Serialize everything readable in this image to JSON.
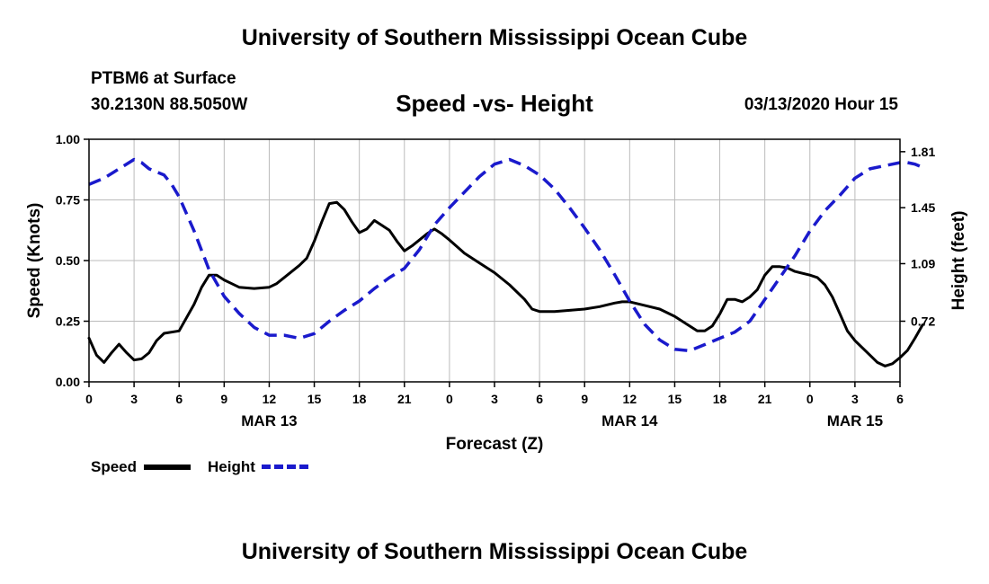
{
  "header": {
    "top_title": "University of Southern Mississippi Ocean Cube",
    "station": "PTBM6 at Surface",
    "coords": "30.2130N 88.5050W",
    "chart_title": "Speed -vs- Height",
    "datetime": "03/13/2020 Hour 15"
  },
  "footer": {
    "bottom_title": "University of Southern Mississippi Ocean Cube"
  },
  "legend": {
    "speed_label": "Speed",
    "height_label": "Height"
  },
  "colors": {
    "speed": "#000000",
    "height": "#1a1acc",
    "grid": "#bbbbbb"
  },
  "chart_data": {
    "type": "line",
    "title": "Speed -vs- Height",
    "xlabel": "Forecast (Z)",
    "ylabel": "Speed (Knots)",
    "y2label": "Height (feet)",
    "x_range_hours": [
      0,
      54
    ],
    "ylim": [
      0,
      1.0
    ],
    "y2lim": [
      0.33,
      1.89
    ],
    "y_ticks": [
      "0.00",
      "0.25",
      "0.50",
      "0.75",
      "1.00"
    ],
    "y2_ticks": [
      "0.72",
      "1.09",
      "1.45",
      "1.81"
    ],
    "x_tick_labels": [
      "0",
      "3",
      "6",
      "9",
      "12",
      "15",
      "18",
      "21",
      "0",
      "3",
      "6",
      "9",
      "12",
      "15",
      "18",
      "21",
      "0",
      "3",
      "6"
    ],
    "date_labels": [
      {
        "text": "MAR 13",
        "hour": 12
      },
      {
        "text": "MAR 14",
        "hour": 36
      },
      {
        "text": "MAR 15",
        "hour": 51
      }
    ],
    "grid": true,
    "series": [
      {
        "name": "Speed",
        "axis": "left",
        "style": "solid",
        "points": [
          [
            0,
            0.18
          ],
          [
            0.5,
            0.11
          ],
          [
            1,
            0.08
          ],
          [
            1.5,
            0.12
          ],
          [
            2,
            0.155
          ],
          [
            2.5,
            0.12
          ],
          [
            3,
            0.09
          ],
          [
            3.5,
            0.095
          ],
          [
            4,
            0.12
          ],
          [
            4.5,
            0.17
          ],
          [
            5,
            0.2
          ],
          [
            6,
            0.21
          ],
          [
            7,
            0.32
          ],
          [
            7.5,
            0.39
          ],
          [
            8,
            0.44
          ],
          [
            8.5,
            0.44
          ],
          [
            9,
            0.42
          ],
          [
            10,
            0.39
          ],
          [
            11,
            0.385
          ],
          [
            12,
            0.39
          ],
          [
            12.5,
            0.405
          ],
          [
            13,
            0.43
          ],
          [
            14,
            0.48
          ],
          [
            14.5,
            0.51
          ],
          [
            15,
            0.58
          ],
          [
            15.5,
            0.66
          ],
          [
            16,
            0.735
          ],
          [
            16.5,
            0.74
          ],
          [
            17,
            0.71
          ],
          [
            17.5,
            0.66
          ],
          [
            18,
            0.615
          ],
          [
            18.5,
            0.63
          ],
          [
            19,
            0.665
          ],
          [
            19.5,
            0.645
          ],
          [
            20,
            0.625
          ],
          [
            20.5,
            0.58
          ],
          [
            21,
            0.54
          ],
          [
            21.5,
            0.56
          ],
          [
            22,
            0.585
          ],
          [
            22.5,
            0.61
          ],
          [
            23,
            0.63
          ],
          [
            23.5,
            0.61
          ],
          [
            24,
            0.585
          ],
          [
            25,
            0.53
          ],
          [
            26,
            0.49
          ],
          [
            27,
            0.45
          ],
          [
            28,
            0.4
          ],
          [
            29,
            0.34
          ],
          [
            29.5,
            0.3
          ],
          [
            30,
            0.29
          ],
          [
            31,
            0.29
          ],
          [
            32,
            0.295
          ],
          [
            33,
            0.3
          ],
          [
            34,
            0.31
          ],
          [
            35,
            0.325
          ],
          [
            35.5,
            0.33
          ],
          [
            36,
            0.33
          ],
          [
            37,
            0.315
          ],
          [
            38,
            0.3
          ],
          [
            39,
            0.27
          ],
          [
            40,
            0.23
          ],
          [
            40.5,
            0.21
          ],
          [
            41,
            0.21
          ],
          [
            41.5,
            0.23
          ],
          [
            42,
            0.28
          ],
          [
            42.5,
            0.34
          ],
          [
            43,
            0.34
          ],
          [
            43.5,
            0.33
          ],
          [
            44,
            0.35
          ],
          [
            44.5,
            0.38
          ],
          [
            45,
            0.44
          ],
          [
            45.5,
            0.475
          ],
          [
            46,
            0.475
          ],
          [
            46.5,
            0.47
          ],
          [
            47,
            0.455
          ],
          [
            48,
            0.44
          ],
          [
            48.5,
            0.43
          ],
          [
            49,
            0.4
          ],
          [
            49.5,
            0.35
          ],
          [
            50,
            0.28
          ],
          [
            50.5,
            0.21
          ],
          [
            51,
            0.17
          ],
          [
            52,
            0.11
          ],
          [
            52.5,
            0.08
          ],
          [
            53,
            0.065
          ],
          [
            53.5,
            0.075
          ],
          [
            54,
            0.1
          ],
          [
            54.5,
            0.13
          ],
          [
            55,
            0.18
          ],
          [
            55.5,
            0.235
          ]
        ]
      },
      {
        "name": "Height",
        "axis": "right",
        "style": "dashed",
        "points": [
          [
            0,
            1.6
          ],
          [
            1,
            1.64
          ],
          [
            2,
            1.7
          ],
          [
            3,
            1.76
          ],
          [
            3.5,
            1.74
          ],
          [
            4,
            1.7
          ],
          [
            5,
            1.66
          ],
          [
            5.5,
            1.6
          ],
          [
            6,
            1.52
          ],
          [
            7,
            1.3
          ],
          [
            8,
            1.05
          ],
          [
            9,
            0.88
          ],
          [
            10,
            0.77
          ],
          [
            11,
            0.68
          ],
          [
            12,
            0.63
          ],
          [
            13,
            0.63
          ],
          [
            14,
            0.61
          ],
          [
            15,
            0.64
          ],
          [
            16,
            0.72
          ],
          [
            17,
            0.79
          ],
          [
            18,
            0.85
          ],
          [
            19,
            0.93
          ],
          [
            20,
            1.0
          ],
          [
            21,
            1.06
          ],
          [
            22,
            1.18
          ],
          [
            23,
            1.34
          ],
          [
            24,
            1.45
          ],
          [
            25,
            1.55
          ],
          [
            26,
            1.65
          ],
          [
            27,
            1.73
          ],
          [
            28,
            1.76
          ],
          [
            29,
            1.72
          ],
          [
            30,
            1.66
          ],
          [
            31,
            1.57
          ],
          [
            32,
            1.45
          ],
          [
            33,
            1.32
          ],
          [
            34,
            1.18
          ],
          [
            35,
            1.02
          ],
          [
            36,
            0.85
          ],
          [
            37,
            0.7
          ],
          [
            38,
            0.6
          ],
          [
            39,
            0.54
          ],
          [
            40,
            0.53
          ],
          [
            41,
            0.57
          ],
          [
            42,
            0.61
          ],
          [
            43,
            0.65
          ],
          [
            44,
            0.72
          ],
          [
            45,
            0.86
          ],
          [
            46,
            1.0
          ],
          [
            47,
            1.14
          ],
          [
            48,
            1.3
          ],
          [
            49,
            1.43
          ],
          [
            50,
            1.53
          ],
          [
            51,
            1.64
          ],
          [
            52,
            1.7
          ],
          [
            53,
            1.72
          ],
          [
            54,
            1.74
          ],
          [
            54.5,
            1.74
          ],
          [
            55,
            1.73
          ],
          [
            55.5,
            1.71
          ]
        ]
      }
    ]
  }
}
